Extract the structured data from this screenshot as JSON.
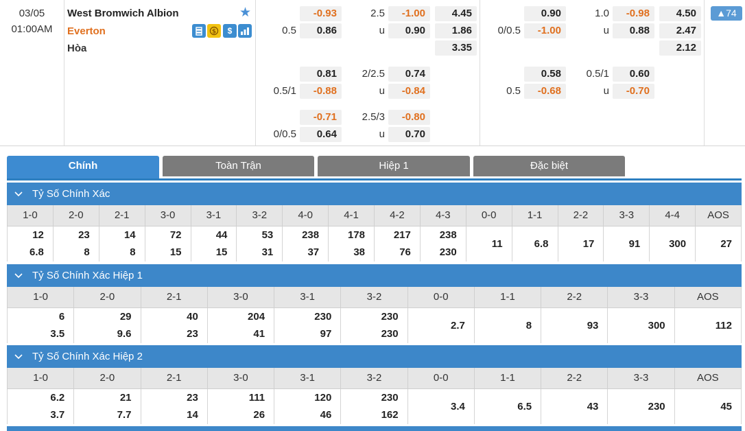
{
  "match": {
    "date": "03/05",
    "time": "01:00AM",
    "home": "West Bromwich Albion",
    "away": "Everton",
    "draw": "Hòa",
    "more_count": "▲74",
    "icons": [
      "strategy-icon",
      "coin-icon",
      "dollar-icon",
      "stats-icon"
    ]
  },
  "odds": {
    "ft": {
      "hdp1": {
        "home": "-0.93",
        "line": "0.5",
        "away": "0.86"
      },
      "ou1": {
        "line": "2.5",
        "over": "-1.00",
        "u": "u",
        "under": "0.90"
      },
      "x12": {
        "home": "4.45",
        "away": "1.86",
        "draw": "3.35"
      },
      "hdp2": {
        "home": "0.81",
        "line": "0.5/1",
        "away": "-0.88"
      },
      "ou2": {
        "line": "2/2.5",
        "over": "0.74",
        "u": "u",
        "under": "-0.84"
      },
      "hdp3": {
        "home": "-0.71",
        "line": "0/0.5",
        "away": "0.64"
      },
      "ou3": {
        "line": "2.5/3",
        "over": "-0.80",
        "u": "u",
        "under": "0.70"
      }
    },
    "h1": {
      "hdp1": {
        "home": "0.90",
        "line": "0/0.5",
        "away": "-1.00"
      },
      "ou1": {
        "line": "1.0",
        "over": "-0.98",
        "u": "u",
        "under": "0.88"
      },
      "x12": {
        "home": "4.50",
        "away": "2.47",
        "draw": "2.12"
      },
      "hdp2": {
        "home": "0.58",
        "line": "0.5",
        "away": "-0.68"
      },
      "ou2": {
        "line": "0.5/1",
        "over": "0.60",
        "u": "u",
        "under": "-0.70"
      }
    }
  },
  "tabs": [
    "Chính",
    "Toàn Trận",
    "Hiệp 1",
    "Đặc biệt"
  ],
  "sections": [
    {
      "title": "Tỷ Số Chính Xác",
      "headers": [
        "1-0",
        "2-0",
        "2-1",
        "3-0",
        "3-1",
        "3-2",
        "4-0",
        "4-1",
        "4-2",
        "4-3",
        "0-0",
        "1-1",
        "2-2",
        "3-3",
        "4-4",
        "AOS"
      ],
      "values": [
        [
          "12",
          "6.8"
        ],
        [
          "23",
          "8"
        ],
        [
          "14",
          "8"
        ],
        [
          "72",
          "15"
        ],
        [
          "44",
          "15"
        ],
        [
          "53",
          "31"
        ],
        [
          "238",
          "37"
        ],
        [
          "178",
          "38"
        ],
        [
          "217",
          "76"
        ],
        [
          "238",
          "230"
        ],
        [
          "11"
        ],
        [
          "6.8"
        ],
        [
          "17"
        ],
        [
          "91"
        ],
        [
          "300"
        ],
        [
          "27"
        ]
      ]
    },
    {
      "title": "Tỷ Số Chính Xác Hiệp 1",
      "headers": [
        "1-0",
        "2-0",
        "2-1",
        "3-0",
        "3-1",
        "3-2",
        "0-0",
        "1-1",
        "2-2",
        "3-3",
        "AOS"
      ],
      "values": [
        [
          "6",
          "3.5"
        ],
        [
          "29",
          "9.6"
        ],
        [
          "40",
          "23"
        ],
        [
          "204",
          "41"
        ],
        [
          "230",
          "97"
        ],
        [
          "230",
          "230"
        ],
        [
          "2.7"
        ],
        [
          "8"
        ],
        [
          "93"
        ],
        [
          "300"
        ],
        [
          "112"
        ]
      ]
    },
    {
      "title": "Tỷ Số Chính Xác Hiệp 2",
      "headers": [
        "1-0",
        "2-0",
        "2-1",
        "3-0",
        "3-1",
        "3-2",
        "0-0",
        "1-1",
        "2-2",
        "3-3",
        "AOS"
      ],
      "values": [
        [
          "6.2",
          "3.7"
        ],
        [
          "21",
          "7.7"
        ],
        [
          "23",
          "14"
        ],
        [
          "111",
          "26"
        ],
        [
          "120",
          "46"
        ],
        [
          "230",
          "162"
        ],
        [
          "3.4"
        ],
        [
          "6.5"
        ],
        [
          "43"
        ],
        [
          "230"
        ],
        [
          "45"
        ]
      ]
    }
  ],
  "colors": {
    "accent": "#3d87c9",
    "negative": "#e0701f",
    "tab_inactive": "#7b7b7b"
  }
}
